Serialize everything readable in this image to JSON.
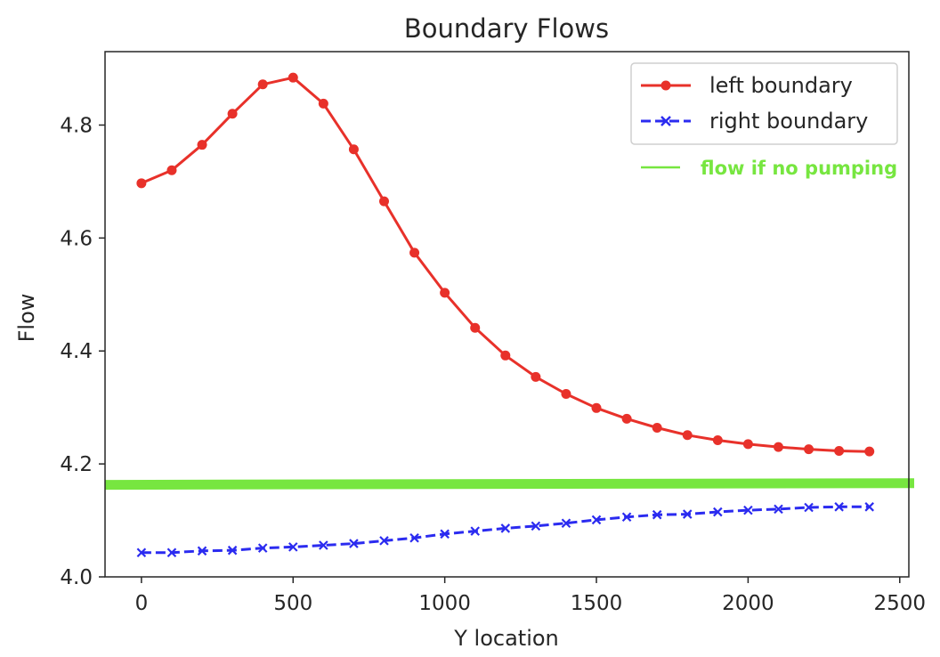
{
  "chart_data": {
    "type": "line",
    "title": "Boundary Flows",
    "xlabel": "Y location",
    "ylabel": "Flow",
    "xlim": [
      -120,
      2530
    ],
    "ylim": [
      4.0,
      4.93
    ],
    "xticks": [
      0,
      500,
      1000,
      1500,
      2000,
      2500
    ],
    "xtick_labels": [
      "0",
      "500",
      "1000",
      "1500",
      "2000",
      "2500"
    ],
    "yticks": [
      4.0,
      4.2,
      4.4,
      4.6,
      4.8
    ],
    "ytick_labels": [
      "4.0",
      "4.2",
      "4.4",
      "4.6",
      "4.8"
    ],
    "grid": false,
    "legend_position": "top-right",
    "x": [
      0,
      100,
      200,
      300,
      400,
      500,
      600,
      700,
      800,
      900,
      1000,
      1100,
      1200,
      1300,
      1400,
      1500,
      1600,
      1700,
      1800,
      1900,
      2000,
      2100,
      2200,
      2300,
      2400
    ],
    "series": [
      {
        "name": "left boundary",
        "color": "#e8312a",
        "style": "solid",
        "marker": "circle",
        "values": [
          4.697,
          4.72,
          4.765,
          4.82,
          4.872,
          4.884,
          4.838,
          4.757,
          4.665,
          4.574,
          4.503,
          4.441,
          4.392,
          4.354,
          4.324,
          4.299,
          4.28,
          4.264,
          4.251,
          4.242,
          4.235,
          4.23,
          4.226,
          4.223,
          4.222
        ]
      },
      {
        "name": "right boundary",
        "color": "#2b2bf0",
        "style": "dashed",
        "marker": "x",
        "values": [
          4.043,
          4.043,
          4.046,
          4.047,
          4.051,
          4.053,
          4.056,
          4.059,
          4.064,
          4.069,
          4.076,
          4.081,
          4.086,
          4.09,
          4.095,
          4.101,
          4.106,
          4.11,
          4.111,
          4.115,
          4.118,
          4.12,
          4.123,
          4.124,
          4.124
        ]
      }
    ],
    "reference_line": {
      "name": "flow if no pumping",
      "color": "#77e640",
      "y_start": 4.163,
      "y_end": 4.166
    }
  }
}
